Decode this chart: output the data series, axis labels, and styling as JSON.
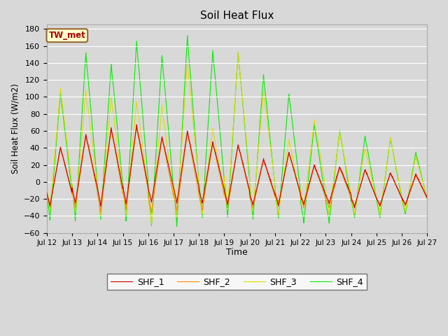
{
  "title": "Soil Heat Flux",
  "xlabel": "Time",
  "ylabel": "Soil Heat Flux (W/m2)",
  "ylim": [
    -60,
    185
  ],
  "yticks": [
    -60,
    -40,
    -20,
    0,
    20,
    40,
    60,
    80,
    100,
    120,
    140,
    160,
    180
  ],
  "n_days": 15,
  "start_day": 12,
  "annotation": "TW_met",
  "legend_entries": [
    "SHF_1",
    "SHF_2",
    "SHF_3",
    "SHF_4"
  ],
  "colors": [
    "#cc0000",
    "#ff8800",
    "#dddd00",
    "#00ee00"
  ],
  "fig_bg": "#d8d8d8",
  "ax_bg": "#d8d8d8",
  "grid_color": "#ffffff",
  "pts_per_day": 144,
  "peaks_shf1": [
    41,
    56,
    64,
    67,
    53,
    60,
    47,
    44,
    27,
    35,
    20,
    18,
    15,
    11,
    9
  ],
  "peaks_shf2": [
    40,
    54,
    62,
    65,
    52,
    58,
    46,
    43,
    26,
    34,
    19,
    17,
    14,
    10,
    8
  ],
  "peaks_shf3": [
    110,
    108,
    100,
    95,
    90,
    141,
    63,
    152,
    107,
    50,
    73,
    59,
    40,
    52,
    30
  ],
  "peaks_shf4": [
    105,
    152,
    139,
    166,
    149,
    172,
    155,
    153,
    126,
    104,
    68,
    61,
    54,
    52,
    35
  ],
  "valley_shf1": [
    -28,
    -25,
    -28,
    -26,
    -24,
    -25,
    -25,
    -26,
    -27,
    -28,
    -26,
    -25,
    -30,
    -28,
    -27
  ],
  "valley_shf2": [
    -30,
    -30,
    -35,
    -32,
    -36,
    -34,
    -33,
    -30,
    -30,
    -25,
    -30,
    -30,
    -28,
    -28,
    -28
  ],
  "valley_shf3": [
    -35,
    -36,
    -40,
    -38,
    -50,
    -42,
    -38,
    -32,
    -35,
    -38,
    -32,
    -38,
    -38,
    -38,
    -35
  ],
  "valley_shf4": [
    -45,
    -46,
    -44,
    -46,
    -52,
    -52,
    -42,
    -42,
    -44,
    -43,
    -48,
    -48,
    -42,
    -42,
    -38
  ],
  "peak_hour": 13.0,
  "valley_hour": 3.0
}
